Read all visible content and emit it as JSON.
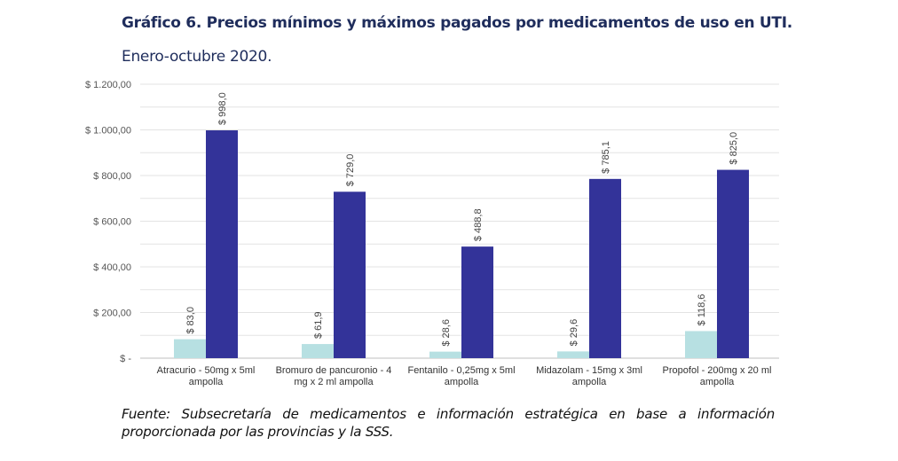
{
  "header": {
    "title": "Gráfico 6. Precios mínimos y máximos pagados por medicamentos de uso en UTI.",
    "subtitle": "Enero-octubre 2020."
  },
  "chart_data": {
    "type": "bar",
    "title": "Gráfico 6. Precios mínimos y máximos pagados por medicamentos de uso en UTI.",
    "categories": [
      [
        "Atracurio - 50mg x 5ml",
        "ampolla"
      ],
      [
        "Bromuro de pancuronio - 4",
        "mg x 2 ml ampolla"
      ],
      [
        "Fentanilo - 0,25mg x 5ml",
        "ampolla"
      ],
      [
        "Midazolam - 15mg x 3ml",
        "ampolla"
      ],
      [
        "Propofol - 200mg x 20 ml",
        "ampolla"
      ]
    ],
    "series": [
      {
        "name": "Mínimo",
        "color": "#b7e0e2",
        "values": [
          83.0,
          61.9,
          28.6,
          29.6,
          118.6
        ],
        "labels": [
          "$ 83,0",
          "$ 61,9",
          "$ 28,6",
          "$ 29,6",
          "$ 118,6"
        ]
      },
      {
        "name": "Máximo",
        "color": "#333399",
        "values": [
          998.0,
          729.0,
          488.8,
          785.1,
          825.0
        ],
        "labels": [
          "$ 998,0",
          "$ 729,0",
          "$ 488,8",
          "$ 785,1",
          "$ 825,0"
        ]
      }
    ],
    "yticks": [
      0,
      200,
      400,
      600,
      800,
      1000,
      1200
    ],
    "ytick_labels": [
      "$ -",
      "$ 200,00",
      "$ 400,00",
      "$ 600,00",
      "$ 800,00",
      "$ 1.000,00",
      "$ 1.200,00"
    ],
    "ylim": [
      0,
      1200
    ],
    "grid": true,
    "legend": "none"
  },
  "footer": {
    "note": "Fuente: Subsecretaría de medicamentos e información estratégica en base a información proporcionada por las provincias y la SSS."
  }
}
